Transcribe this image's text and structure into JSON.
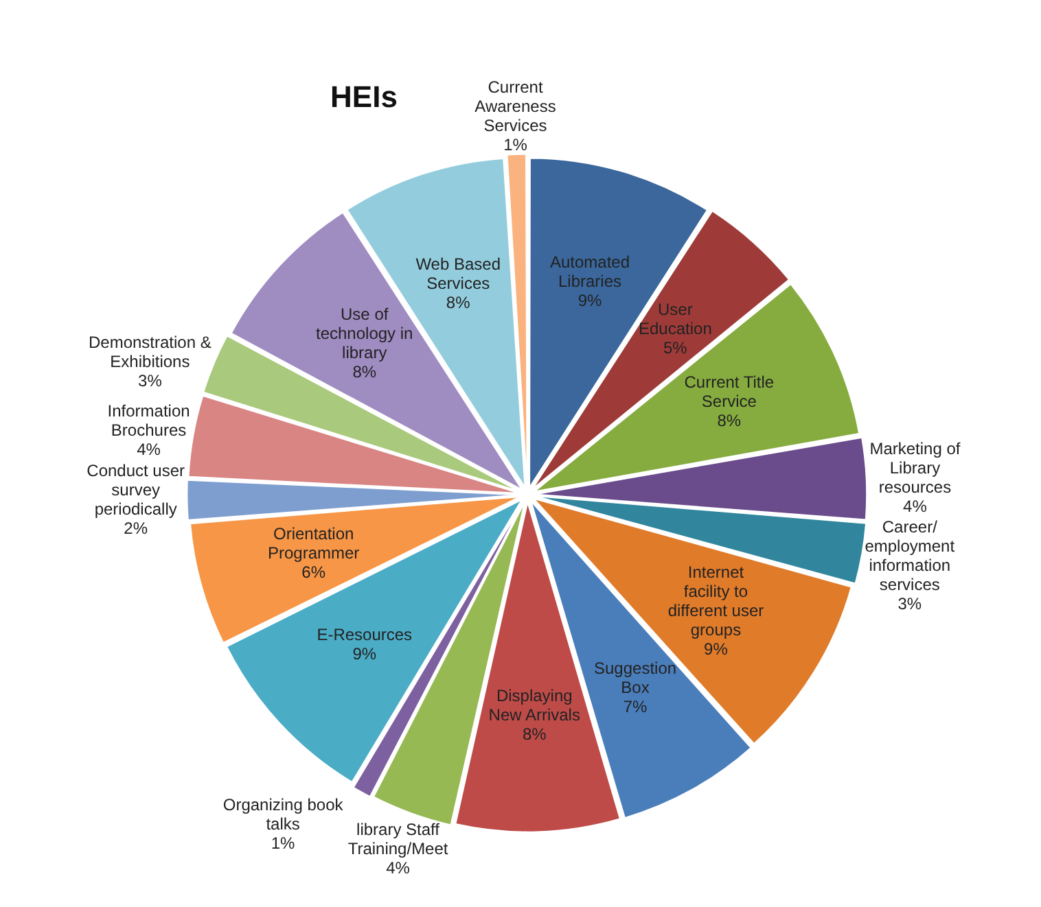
{
  "chart_data": {
    "type": "pie",
    "title": "HEIs",
    "categories": [
      "Automated Libraries",
      "User Education",
      "Current Title Service",
      "Marketing of Library resources",
      "Career/ employment information services",
      "Internet facility to different user groups",
      "Suggestion Box",
      "Displaying New Arrivals",
      "library Staff Training/Meet",
      "Organizing book talks",
      "E-Resources",
      "Orientation Programmer",
      "Conduct user survey periodically",
      "Information Brochures",
      "Demonstration & Exhibitions",
      "Use of technology in library",
      "Web Based Services",
      "Current Awareness Services"
    ],
    "values": [
      9,
      5,
      8,
      4,
      3,
      9,
      7,
      8,
      4,
      1,
      9,
      6,
      2,
      4,
      3,
      8,
      8,
      1
    ],
    "colors": [
      "#3b679c",
      "#9e3b39",
      "#86ac40",
      "#6a4b8c",
      "#31869d",
      "#e07b2a",
      "#4a7ebb",
      "#be4b48",
      "#97b954",
      "#7d60a0",
      "#4bacc6",
      "#f79646",
      "#7f9ed0",
      "#d98583",
      "#a9c97c",
      "#9f8cc1",
      "#93cddd",
      "#fab27e"
    ],
    "value_labels": [
      "9%",
      "5%",
      "8%",
      "4%",
      "3%",
      "9%",
      "7%",
      "8%",
      "4%",
      "1%",
      "9%",
      "6%",
      "2%",
      "4%",
      "3%",
      "8%",
      "8%",
      "1%"
    ],
    "legend": false
  }
}
